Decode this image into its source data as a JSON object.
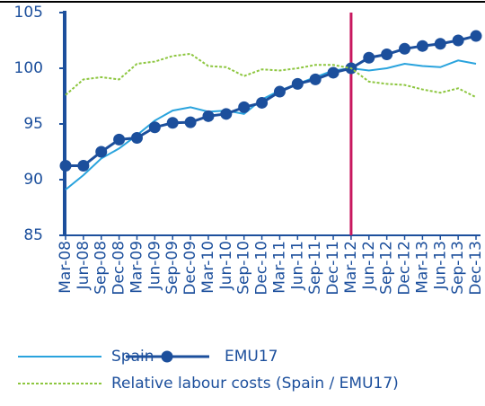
{
  "chart_data": {
    "type": "line",
    "categories": [
      "Mar-08",
      "Jun-08",
      "Sep-08",
      "Dec-08",
      "Mar-09",
      "Jun-09",
      "Sep-09",
      "Dec-09",
      "Mar-10",
      "Jun-10",
      "Sep-10",
      "Dec-10",
      "Mar-11",
      "Jun-11",
      "Sep-11",
      "Dec-11",
      "Mar-12",
      "Jun-12",
      "Sep-12",
      "Dec-12",
      "Mar-13",
      "Jun-13",
      "Sep-13",
      "Dec-13"
    ],
    "series": [
      {
        "name": "Spain",
        "color": "#29a3dd",
        "style": "solid",
        "marker": false,
        "values": [
          89.1,
          90.4,
          91.9,
          92.8,
          94.0,
          95.3,
          96.2,
          96.5,
          96.1,
          96.2,
          95.9,
          97.2,
          98.0,
          98.6,
          99.2,
          99.8,
          100.0,
          99.8,
          100.0,
          100.4,
          100.2,
          100.1,
          100.7,
          100.4
        ]
      },
      {
        "name": "EMU17",
        "color": "#1c4f9c",
        "style": "solid",
        "marker": true,
        "values": [
          91.25,
          91.25,
          92.5,
          93.6,
          93.75,
          94.7,
          95.1,
          95.15,
          95.7,
          95.9,
          96.5,
          96.9,
          97.9,
          98.6,
          99.0,
          99.6,
          100.0,
          100.95,
          101.25,
          101.75,
          102.0,
          102.2,
          102.5,
          102.9
        ]
      },
      {
        "name": "Relative labour costs (Spain / EMU17)",
        "color": "#8dc63f",
        "style": "dashed",
        "marker": false,
        "values": [
          97.6,
          99.0,
          99.2,
          99.0,
          100.4,
          100.6,
          101.1,
          101.3,
          100.2,
          100.1,
          99.3,
          99.9,
          99.8,
          100.0,
          100.3,
          100.3,
          100.0,
          98.8,
          98.6,
          98.5,
          98.1,
          97.8,
          98.2,
          97.4
        ]
      }
    ],
    "ylim": [
      85,
      105
    ],
    "yticks": [
      85,
      90,
      95,
      100,
      105
    ],
    "grid": false,
    "vline_category": "Mar-12",
    "vline_color": "#c8175e"
  }
}
